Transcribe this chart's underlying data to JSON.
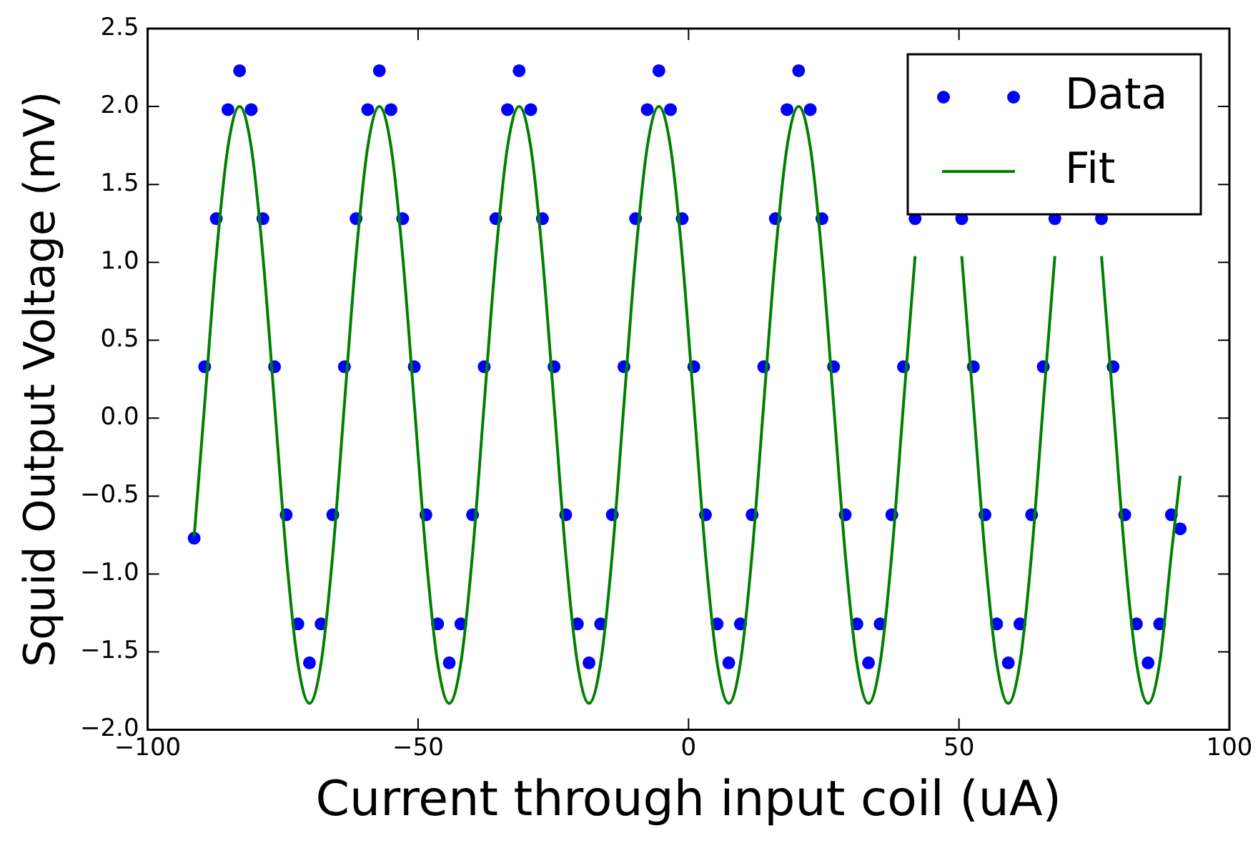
{
  "chart_data": {
    "type": "scatter",
    "xlabel": "Current through input coil (uA)",
    "ylabel": "Squid Output Voltage (mV)",
    "xlim": [
      -100,
      100
    ],
    "xticks": [
      {
        "value": -100,
        "label": "−100"
      },
      {
        "value": -50,
        "label": "−50"
      },
      0,
      50,
      100
    ],
    "ylim": [
      -2.0,
      2.5
    ],
    "yticks": [
      {
        "value": -2.0,
        "label": "−2.0"
      },
      {
        "value": -1.5,
        "label": "−1.5"
      },
      {
        "value": -1.0,
        "label": "−1.0"
      },
      {
        "value": -0.5,
        "label": "−0.5"
      },
      {
        "value": 0.0,
        "label": "0.0"
      },
      {
        "value": 0.5,
        "label": "0.5"
      },
      {
        "value": 1.0,
        "label": "1.0"
      },
      {
        "value": 1.5,
        "label": "1.5"
      },
      {
        "value": 2.0,
        "label": "2.0"
      },
      {
        "value": 2.5,
        "label": "2.5"
      }
    ],
    "grid": false,
    "legend": "top right",
    "x": [
      -91.4,
      -89.46,
      -87.31,
      -85.15,
      -83.0,
      -80.85,
      -78.69,
      -76.54,
      -74.39,
      -72.23,
      -70.08,
      -67.93,
      -65.77,
      -63.62,
      -61.47,
      -59.31,
      -57.16,
      -55.01,
      -52.85,
      -50.7,
      -48.55,
      -46.39,
      -44.24,
      -42.09,
      -39.93,
      -37.78,
      -35.63,
      -33.47,
      -31.32,
      -29.17,
      -27.01,
      -24.86,
      -22.71,
      -20.55,
      -18.4,
      -16.25,
      -14.09,
      -11.94,
      -9.79,
      -7.63,
      -5.48,
      -3.33,
      -1.17,
      0.98,
      3.13,
      5.29,
      7.44,
      9.59,
      11.75,
      13.9,
      16.05,
      18.21,
      20.36,
      22.51,
      24.67,
      26.82,
      28.97,
      31.13,
      33.28,
      35.43,
      37.59,
      39.74,
      41.89,
      44.05,
      46.2,
      48.35,
      50.51,
      52.66,
      54.81,
      56.97,
      59.12,
      61.27,
      63.43,
      65.58,
      67.73,
      69.89,
      72.04,
      74.19,
      76.35,
      78.5,
      80.65,
      82.81,
      84.96,
      87.11,
      89.27,
      90.9
    ],
    "series": [
      {
        "name": "Data",
        "type": "scatter",
        "marker": "circle",
        "color": "#0000ff",
        "values": [
          -0.77,
          0.33,
          1.28,
          1.98,
          2.23,
          1.98,
          1.28,
          0.33,
          -0.62,
          -1.32,
          -1.57,
          -1.32,
          -0.62,
          0.33,
          1.28,
          1.98,
          2.23,
          1.98,
          1.28,
          0.33,
          -0.62,
          -1.32,
          -1.57,
          -1.32,
          -0.62,
          0.33,
          1.28,
          1.98,
          2.23,
          1.98,
          1.28,
          0.33,
          -0.62,
          -1.32,
          -1.57,
          -1.32,
          -0.62,
          0.33,
          1.28,
          1.98,
          2.23,
          1.98,
          1.28,
          0.33,
          -0.62,
          -1.32,
          -1.57,
          -1.32,
          -0.62,
          0.33,
          1.28,
          1.98,
          2.23,
          1.98,
          1.28,
          0.33,
          -0.62,
          -1.32,
          -1.57,
          -1.32,
          -0.62,
          0.33,
          1.28,
          null,
          null,
          null,
          1.28,
          0.33,
          -0.62,
          -1.32,
          -1.57,
          -1.32,
          -0.62,
          0.33,
          1.28,
          null,
          null,
          null,
          1.28,
          0.33,
          -0.62,
          -1.32,
          -1.57,
          -1.32,
          -0.62,
          -0.71
        ]
      },
      {
        "name": "Fit",
        "type": "line",
        "marker": "none",
        "color": "#008000",
        "values": [
          -0.76,
          0.09,
          1.04,
          1.74,
          2.0,
          1.74,
          1.04,
          0.09,
          -0.87,
          -1.57,
          -1.83,
          -1.57,
          -0.87,
          0.09,
          1.04,
          1.74,
          2.0,
          1.74,
          1.04,
          0.09,
          -0.87,
          -1.57,
          -1.83,
          -1.57,
          -0.87,
          0.09,
          1.04,
          1.74,
          2.0,
          1.74,
          1.04,
          0.09,
          -0.87,
          -1.57,
          -1.83,
          -1.57,
          -0.87,
          0.09,
          1.04,
          1.74,
          2.0,
          1.74,
          1.04,
          0.09,
          -0.87,
          -1.57,
          -1.83,
          -1.57,
          -0.87,
          0.09,
          1.04,
          1.74,
          2.0,
          1.74,
          1.04,
          0.09,
          -0.87,
          -1.57,
          -1.83,
          -1.57,
          -0.87,
          0.09,
          1.04,
          null,
          null,
          null,
          1.04,
          0.09,
          -0.87,
          -1.57,
          -1.83,
          -1.57,
          -0.87,
          0.09,
          1.04,
          null,
          null,
          null,
          1.04,
          0.09,
          -0.87,
          -1.57,
          -1.83,
          -1.57,
          -0.87,
          -0.37
        ]
      }
    ]
  }
}
